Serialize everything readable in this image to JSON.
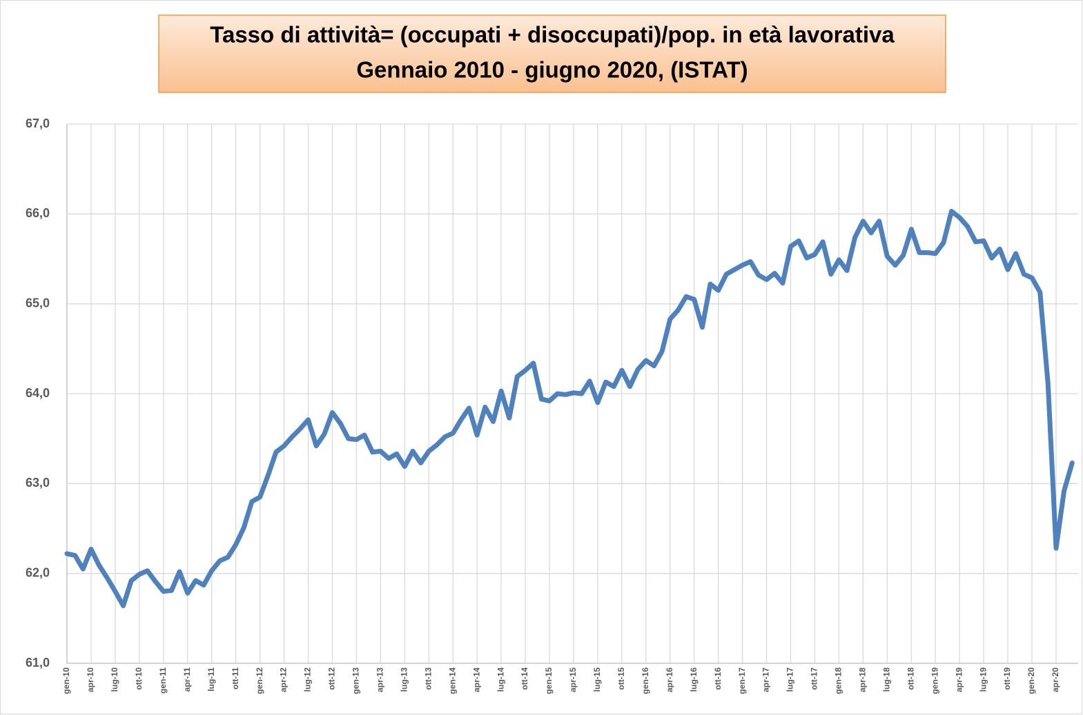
{
  "chart_data": {
    "type": "line",
    "title": "Tasso di attività= (occupati + disoccupati)/pop. in età lavorativa",
    "subtitle": "Gennaio 2010 - giugno 2020, (ISTAT)",
    "categories": [
      "gen-10",
      null,
      null,
      "apr-10",
      null,
      null,
      "lug-10",
      null,
      null,
      "ott-10",
      null,
      null,
      "gen-11",
      null,
      null,
      "apr-11",
      null,
      null,
      "lug-11",
      null,
      null,
      "ott-11",
      null,
      null,
      "gen-12",
      null,
      null,
      "apr-12",
      null,
      null,
      "lug-12",
      null,
      null,
      "ott-12",
      null,
      null,
      "gen-13",
      null,
      null,
      "apr-13",
      null,
      null,
      "lug-13",
      null,
      null,
      "ott-13",
      null,
      null,
      "gen-14",
      null,
      null,
      "apr-14",
      null,
      null,
      "lug-14",
      null,
      null,
      "ott-14",
      null,
      null,
      "gen-15",
      null,
      null,
      "apr-15",
      null,
      null,
      "lug-15",
      null,
      null,
      "ott-15",
      null,
      null,
      "gen-16",
      null,
      null,
      "apr-16",
      null,
      null,
      "lug-16",
      null,
      null,
      "ott-16",
      null,
      null,
      "gen-17",
      null,
      null,
      "apr-17",
      null,
      null,
      "lug-17",
      null,
      null,
      "ott-17",
      null,
      null,
      "gen-18",
      null,
      null,
      "apr-18",
      null,
      null,
      "lug-18",
      null,
      null,
      "ott-18",
      null,
      null,
      "gen-19",
      null,
      null,
      "apr-19",
      null,
      null,
      "lug-19",
      null,
      null,
      "ott-19",
      null,
      null,
      "gen-20",
      null,
      null,
      "apr-20",
      null,
      null
    ],
    "series": [
      {
        "name": "Tasso di attività",
        "color": "#4f81bd",
        "values": [
          62.22,
          62.2,
          62.05,
          62.27,
          62.09,
          61.95,
          61.8,
          61.64,
          61.92,
          61.99,
          62.03,
          61.91,
          61.8,
          61.81,
          62.02,
          61.78,
          61.92,
          61.87,
          62.03,
          62.14,
          62.18,
          62.32,
          62.51,
          62.8,
          62.85,
          63.09,
          63.35,
          63.42,
          63.52,
          63.61,
          63.71,
          63.42,
          63.55,
          63.79,
          63.67,
          63.5,
          63.49,
          63.54,
          63.35,
          63.36,
          63.28,
          63.33,
          63.19,
          63.36,
          63.23,
          63.36,
          63.43,
          63.52,
          63.56,
          63.71,
          63.84,
          63.54,
          63.85,
          63.69,
          64.03,
          63.73,
          64.19,
          64.26,
          64.34,
          63.94,
          63.92,
          64.0,
          63.99,
          64.01,
          64.0,
          64.14,
          63.9,
          64.13,
          64.08,
          64.26,
          64.08,
          64.27,
          64.37,
          64.31,
          64.47,
          64.83,
          64.93,
          65.08,
          65.05,
          64.74,
          65.22,
          65.15,
          65.33,
          65.38,
          65.43,
          65.47,
          65.32,
          65.27,
          65.34,
          65.23,
          65.64,
          65.7,
          65.51,
          65.55,
          65.69,
          65.33,
          65.49,
          65.37,
          65.74,
          65.92,
          65.79,
          65.92,
          65.53,
          65.43,
          65.54,
          65.83,
          65.57,
          65.57,
          65.56,
          65.68,
          66.03,
          65.96,
          65.86,
          65.69,
          65.7,
          65.51,
          65.61,
          65.38,
          65.56,
          65.33,
          65.29,
          65.13,
          64.11,
          62.28,
          62.92,
          63.23
        ]
      }
    ],
    "ylim": [
      61,
      67
    ],
    "yticks": [
      {
        "value": 61,
        "label": "61,0"
      },
      {
        "value": 62,
        "label": "62,0"
      },
      {
        "value": 63,
        "label": "63,0"
      },
      {
        "value": 64,
        "label": "64,0"
      },
      {
        "value": 65,
        "label": "65,0"
      },
      {
        "value": 66,
        "label": "66,0"
      },
      {
        "value": 67,
        "label": "67,0"
      }
    ],
    "grid": true
  }
}
